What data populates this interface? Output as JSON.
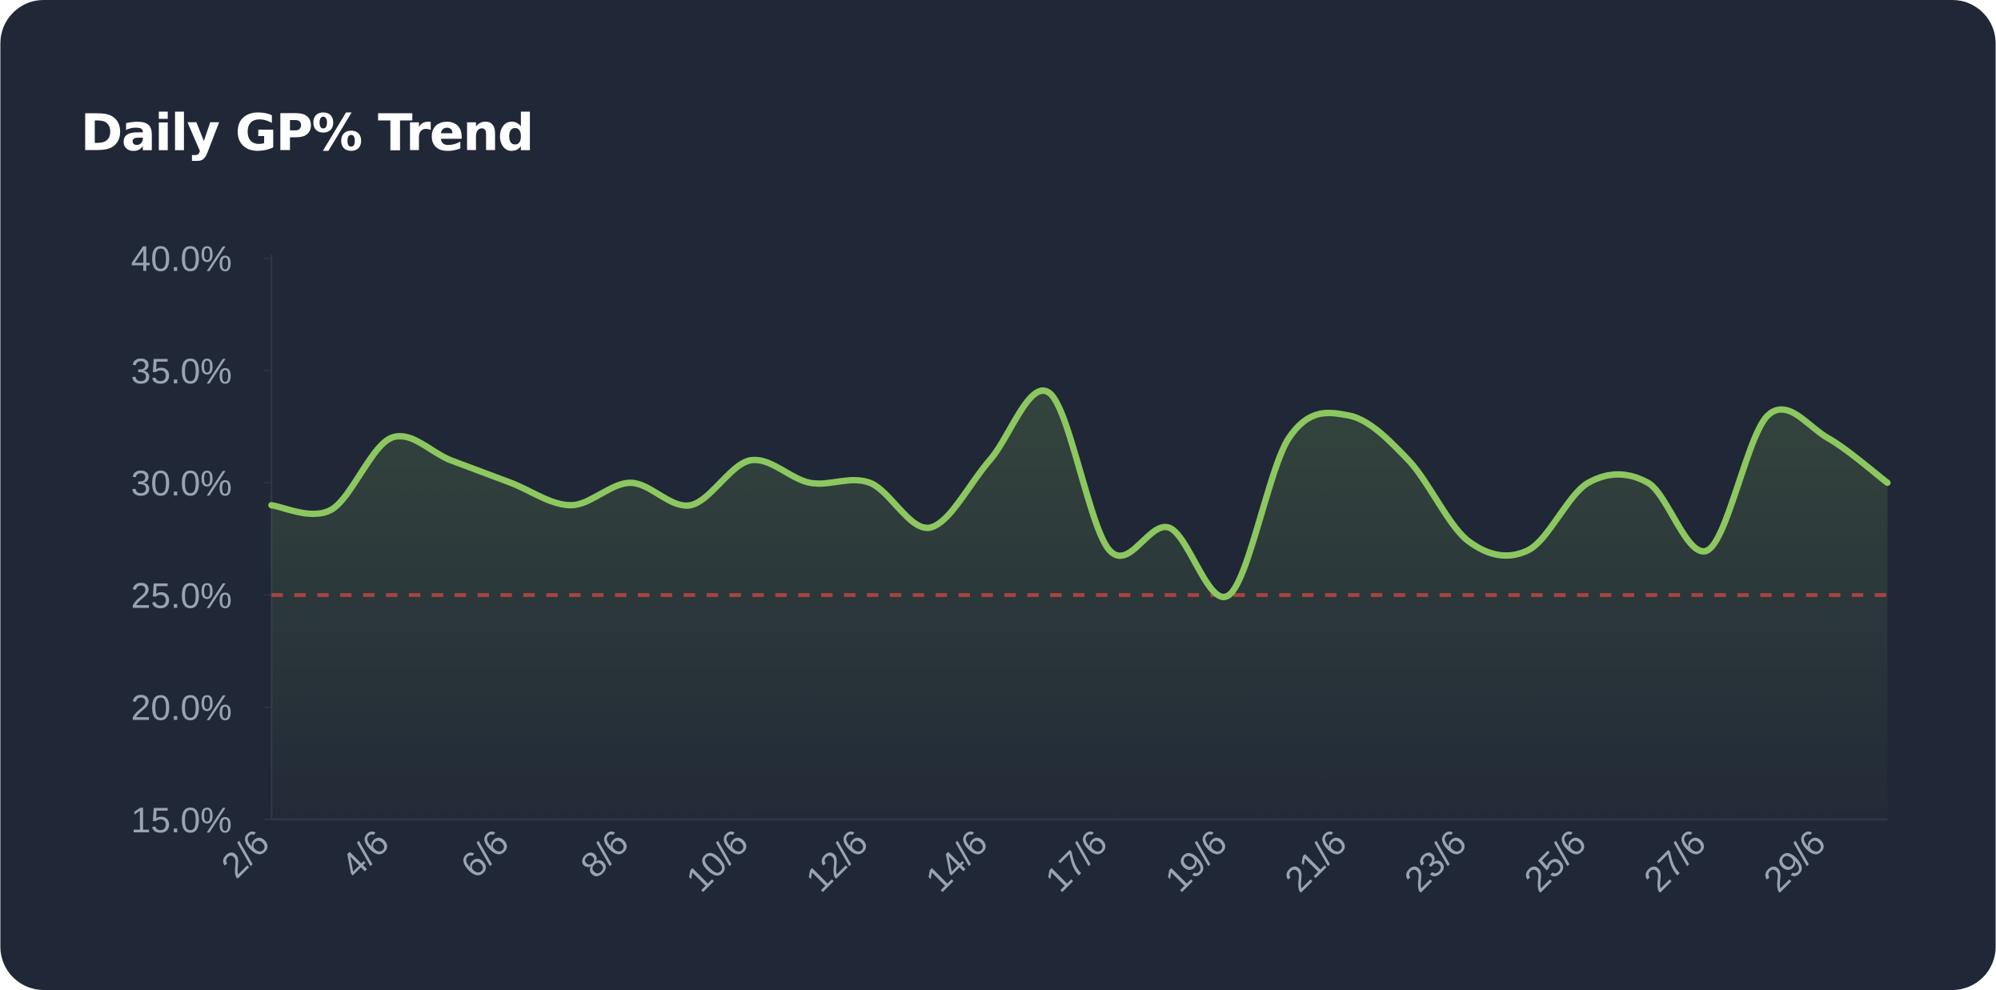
{
  "chart_data": {
    "type": "line",
    "title": "Daily GP% Trend",
    "categories": [
      "2/6",
      null,
      "4/6",
      null,
      "6/6",
      null,
      "8/6",
      null,
      "10/6",
      null,
      "12/6",
      null,
      "14/6",
      null,
      "17/6",
      null,
      "19/6",
      null,
      "21/6",
      null,
      "23/6",
      null,
      "25/6",
      null,
      "27/6",
      null,
      "29/6",
      null
    ],
    "series": [
      {
        "name": "GP%",
        "color": "#8cc85f",
        "values": [
          29.0,
          28.8,
          32.0,
          31.0,
          30.0,
          29.0,
          30.0,
          29.0,
          31.0,
          30.0,
          30.0,
          28.0,
          31.0,
          34.0,
          27.0,
          28.0,
          25.0,
          32.0,
          33.0,
          31.0,
          27.4,
          27.0,
          30.0,
          30.0,
          27.0,
          33.0,
          32.0,
          30.0
        ]
      }
    ],
    "ylim": [
      15,
      40
    ],
    "yticks": [
      {
        "value": 15,
        "label": "15.0%"
      },
      {
        "value": 20,
        "label": "20.0%"
      },
      {
        "value": 25,
        "label": "25.0%"
      },
      {
        "value": 30,
        "label": "30.0%"
      },
      {
        "value": 35,
        "label": "35.0%"
      },
      {
        "value": 40,
        "label": "40.0%"
      }
    ],
    "reference_line": {
      "value": 25,
      "color": "#a8443f"
    }
  }
}
